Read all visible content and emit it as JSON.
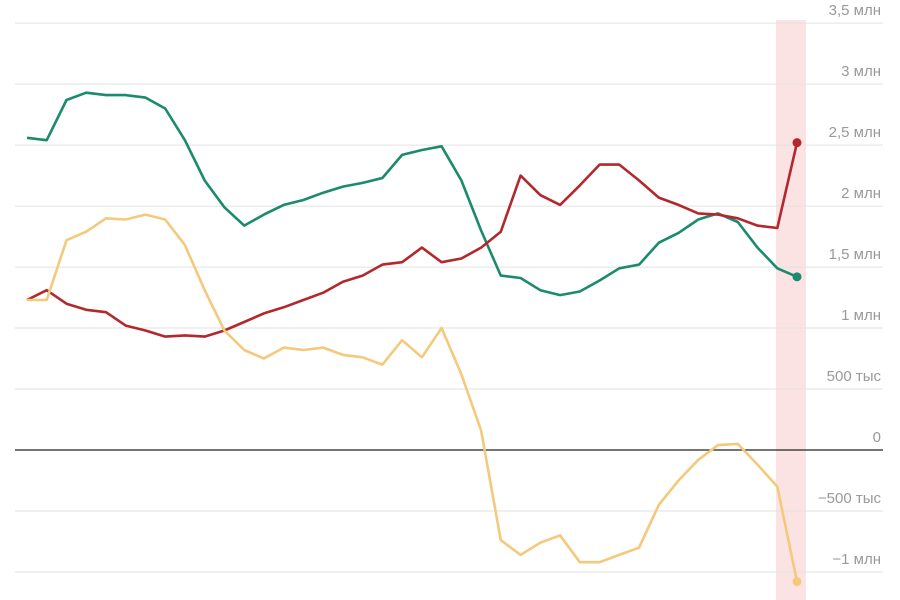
{
  "chart_data": {
    "type": "line",
    "categories": [
      null,
      null,
      null,
      null,
      null,
      null,
      null,
      null,
      null,
      null,
      null,
      null,
      null,
      null,
      null,
      null,
      null,
      null,
      null,
      null,
      null,
      null,
      null,
      null,
      null,
      null,
      null,
      null,
      null,
      null,
      null,
      null,
      null,
      null,
      null,
      null,
      null,
      null,
      null,
      null
    ],
    "series": [
      {
        "color": "#1b8a6d",
        "values": [
          2560000,
          2540000,
          2870000,
          2930000,
          2910000,
          2910000,
          2890000,
          2800000,
          2540000,
          2210000,
          1990000,
          1840000,
          1930000,
          2010000,
          2050000,
          2110000,
          2160000,
          2190000,
          2230000,
          2420000,
          2460000,
          2490000,
          2210000,
          1800000,
          1430000,
          1410000,
          1310000,
          1270000,
          1300000,
          1390000,
          1490000,
          1520000,
          1700000,
          1780000,
          1890000,
          1940000,
          1870000,
          1660000,
          1490000,
          1420000
        ]
      },
      {
        "color": "#b3282d",
        "values": [
          1230000,
          1310000,
          1200000,
          1150000,
          1130000,
          1020000,
          980000,
          930000,
          940000,
          930000,
          980000,
          1050000,
          1120000,
          1170000,
          1230000,
          1290000,
          1380000,
          1430000,
          1520000,
          1540000,
          1660000,
          1540000,
          1570000,
          1660000,
          1790000,
          2250000,
          2090000,
          2010000,
          2170000,
          2340000,
          2340000,
          2210000,
          2070000,
          2010000,
          1940000,
          1930000,
          1900000,
          1840000,
          1820000,
          2520000
        ]
      },
      {
        "color": "#f5c97b",
        "values": [
          1230000,
          1230000,
          1720000,
          1790000,
          1900000,
          1890000,
          1930000,
          1890000,
          1680000,
          1310000,
          980000,
          820000,
          750000,
          840000,
          820000,
          840000,
          780000,
          760000,
          700000,
          900000,
          760000,
          1000000,
          620000,
          160000,
          -740000,
          -860000,
          -760000,
          -700000,
          -920000,
          -920000,
          -860000,
          -800000,
          -450000,
          -250000,
          -80000,
          40000,
          50000,
          -120000,
          -300000,
          -1080000
        ]
      }
    ],
    "ylim": [
      -1230000,
      3690000
    ],
    "yticks": [
      {
        "value": -1000000,
        "label": "−1 млн"
      },
      {
        "value": -500000,
        "label": "−500 тыс"
      },
      0,
      {
        "value": 500000,
        "label": "500 тыс"
      },
      {
        "value": 1000000,
        "label": "1 млн"
      },
      {
        "value": 1500000,
        "label": "1,5 млн"
      },
      {
        "value": 2000000,
        "label": "2 млн"
      },
      {
        "value": 2500000,
        "label": "2,5 млн"
      },
      {
        "value": 3000000,
        "label": "3 млн"
      },
      {
        "value": 3500000,
        "label": "3,5 млн"
      }
    ],
    "grid": true,
    "highlight_color": "#fbe3e3"
  }
}
